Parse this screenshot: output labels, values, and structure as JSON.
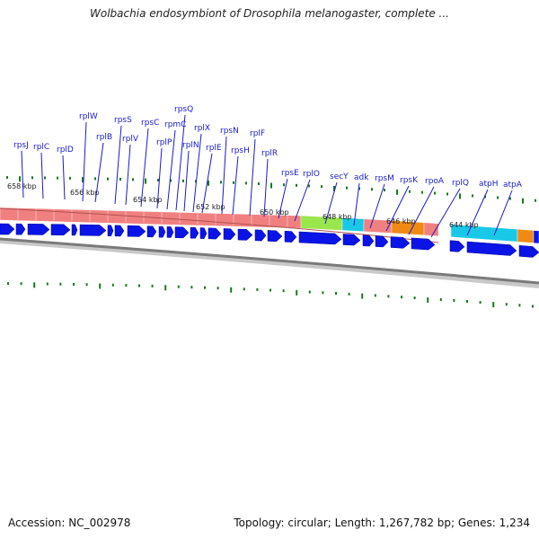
{
  "title": "Wolbachia endosymbiont of Drosophila melanogaster, complete ...",
  "accession_label": "Accession: NC_002978",
  "topology_label": "Topology: circular; Length: 1,267,782 bp; Genes: 1,234",
  "colors": {
    "gene_label": "#1a1acc",
    "gene_arrow": "#0a14e6",
    "rna_band": "#f08080",
    "green_band": "#99e64d",
    "cyan_band": "#19c8e6",
    "orange_band": "#f08a14",
    "tick": "#1a7a1a",
    "backbone": "#808080"
  },
  "scale_labels": [
    "658 kbp",
    "656 kbp",
    "654 kbp",
    "652 kbp",
    "650 kbp",
    "648 kbp",
    "646 kbp",
    "644 kbp"
  ],
  "gene_labels": [
    "rpsJ",
    "rplC",
    "rplD",
    "rplW",
    "rplB",
    "rpsS",
    "rplV",
    "rpsC",
    "rplP",
    "rpmC",
    "rpsQ",
    "rplN",
    "rplX",
    "rplE",
    "rpsN",
    "rpsH",
    "rplF",
    "rplR",
    "rpsE",
    "rplO",
    "secY",
    "adk",
    "rpsM",
    "rpsK",
    "rpoA",
    "rplQ",
    "atpH",
    "atpA"
  ]
}
